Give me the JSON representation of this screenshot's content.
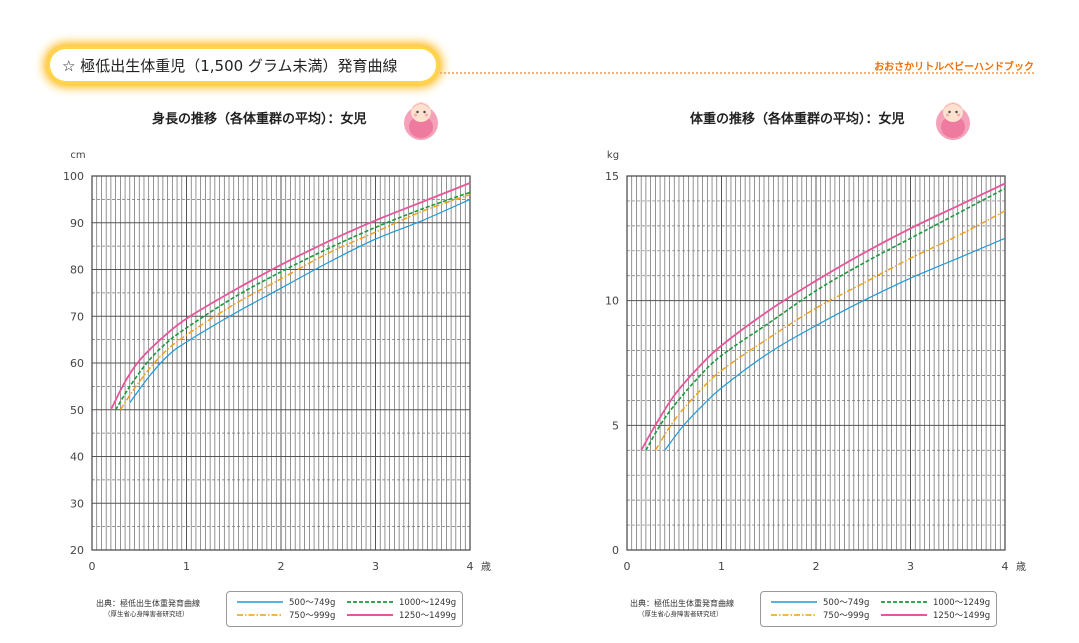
{
  "header": {
    "title": "☆ 極低出生体重児（1,500 グラム未満）発育曲線",
    "brand": "おおさかリトルベビーハンドブック"
  },
  "icons": {
    "baby": "baby-icon"
  },
  "legend_colors": {
    "500~749g": "#1e9ad6",
    "750~999g": "#f39c12",
    "1000~1249g": "#1a9a3c",
    "1250~1499g": "#e8559a"
  },
  "source": {
    "line1": "出典：極低出生体重発育曲線",
    "line2": "（厚生省心身障害者研究班）"
  },
  "chart_data": [
    {
      "type": "line",
      "title": "身長の推移（各体重群の平均）：女児",
      "ylabel": "cm",
      "xlabel": "歳",
      "xlim": [
        0,
        4
      ],
      "ylim": [
        20,
        100
      ],
      "xticks": [
        0,
        1,
        2,
        3,
        4
      ],
      "yticks": [
        20,
        30,
        40,
        50,
        60,
        70,
        80,
        90,
        100
      ],
      "grid": true,
      "legend": "bottom",
      "series": [
        {
          "name": "500～749g",
          "x": [
            0.4,
            0.6,
            0.8,
            1.0,
            1.5,
            2.0,
            2.5,
            3.0,
            3.5,
            4.0
          ],
          "y": [
            51.5,
            57,
            61.5,
            64.5,
            70.5,
            76,
            81.5,
            86.5,
            90.5,
            95
          ]
        },
        {
          "name": "750～999g",
          "x": [
            0.3,
            0.5,
            0.75,
            1.0,
            1.5,
            2.0,
            2.5,
            3.0,
            3.5,
            4.0
          ],
          "y": [
            50,
            56,
            62,
            66,
            72.5,
            78,
            83.5,
            88,
            92.5,
            96
          ]
        },
        {
          "name": "1000～1249g",
          "x": [
            0.25,
            0.4,
            0.6,
            0.8,
            1.0,
            1.5,
            2.0,
            2.5,
            3.0,
            3.5,
            4.0
          ],
          "y": [
            50,
            55,
            60.5,
            64.5,
            67.5,
            74,
            79.5,
            84.5,
            89,
            93,
            96.5
          ]
        },
        {
          "name": "1250～1499g",
          "x": [
            0.2,
            0.35,
            0.5,
            0.75,
            1.0,
            1.5,
            2.0,
            2.5,
            3.0,
            3.5,
            4.0
          ],
          "y": [
            50,
            56,
            60.5,
            65.5,
            69.5,
            75.5,
            81,
            86,
            90.5,
            94.5,
            98.5
          ]
        }
      ]
    },
    {
      "type": "line",
      "title": "体重の推移（各体重群の平均）：女児",
      "ylabel": "kg",
      "xlabel": "歳",
      "xlim": [
        0,
        4
      ],
      "ylim": [
        0,
        15
      ],
      "xticks": [
        0,
        1,
        2,
        3,
        4
      ],
      "yticks": [
        0,
        5,
        10,
        15
      ],
      "grid": true,
      "legend": "bottom",
      "series": [
        {
          "name": "500～749g",
          "x": [
            0.4,
            0.6,
            0.8,
            1.0,
            1.5,
            2.0,
            2.5,
            3.0,
            3.5,
            4.0
          ],
          "y": [
            4,
            5,
            5.8,
            6.5,
            7.9,
            9,
            10,
            10.9,
            11.7,
            12.5
          ]
        },
        {
          "name": "750～999g",
          "x": [
            0.3,
            0.5,
            0.75,
            1.0,
            1.5,
            2.0,
            2.5,
            3.0,
            3.5,
            4.0
          ],
          "y": [
            4,
            5.2,
            6.3,
            7.2,
            8.5,
            9.7,
            10.7,
            11.7,
            12.6,
            13.6
          ]
        },
        {
          "name": "1000～1249g",
          "x": [
            0.2,
            0.35,
            0.5,
            0.75,
            1.0,
            1.5,
            2.0,
            2.5,
            3.0,
            3.5,
            4.0
          ],
          "y": [
            4,
            5,
            5.8,
            6.9,
            7.8,
            9.1,
            10.4,
            11.5,
            12.5,
            13.5,
            14.5
          ]
        },
        {
          "name": "1250～1499g",
          "x": [
            0.15,
            0.3,
            0.5,
            0.75,
            1.0,
            1.5,
            2.0,
            2.5,
            3.0,
            3.5,
            4.0
          ],
          "y": [
            4,
            5,
            6.2,
            7.3,
            8.2,
            9.6,
            10.8,
            11.9,
            12.9,
            13.8,
            14.7
          ]
        }
      ]
    }
  ]
}
